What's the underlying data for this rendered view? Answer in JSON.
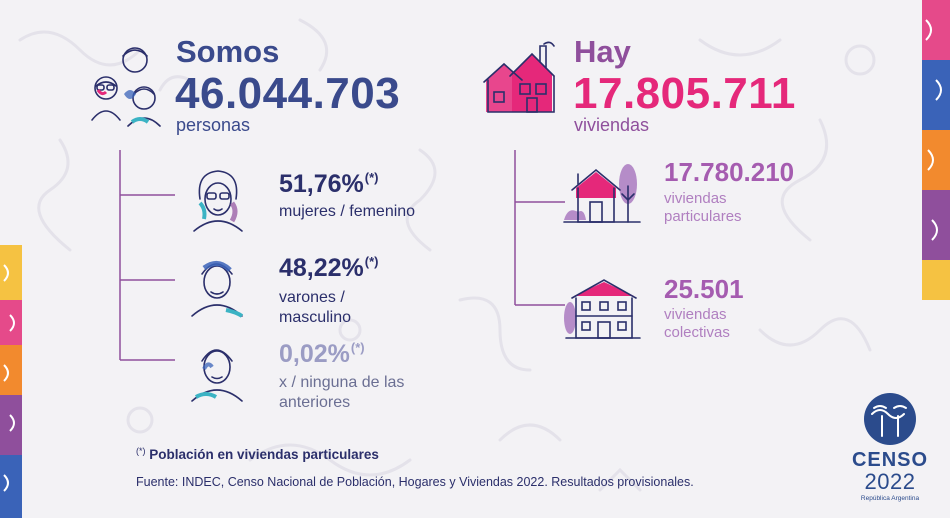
{
  "poblacion": {
    "intro": "Somos",
    "total": "46.044.703",
    "unidad": "personas",
    "stats": [
      {
        "pct": "51,76%",
        "mark": "(*)",
        "label": "mujeres / femenino"
      },
      {
        "pct": "48,22%",
        "mark": "(*)",
        "label": "varones / masculino"
      },
      {
        "pct": "0,02%",
        "mark": "(*)",
        "label": "x / ninguna de las anteriores"
      }
    ]
  },
  "viviendas": {
    "intro": "Hay",
    "total": "17.805.711",
    "unidad": "viviendas",
    "items": [
      {
        "value": "17.780.210",
        "label": "viviendas particulares"
      },
      {
        "value": "25.501",
        "label": "viviendas colectivas"
      }
    ]
  },
  "nota": {
    "mark": "(*)",
    "text": "Población en viviendas particulares"
  },
  "fuente": "Fuente: INDEC, Censo Nacional de Población, Hogares y Viviendas 2022. Resultados provisionales.",
  "logo": {
    "word": "CENSO",
    "year": "2022",
    "sub": "República Argentina"
  },
  "colors": {
    "navy": "#3a4a8c",
    "dark": "#2b2f6b",
    "pink": "#e5287a",
    "purple": "#8f4f9c",
    "lilac": "#b58cc8",
    "background": "#f3f2f5"
  },
  "icons": [
    "people-group-icon",
    "woman-face-icon",
    "man-face-icon",
    "person-face-icon",
    "houses-group-icon",
    "house-icon",
    "building-icon",
    "censo-logo-icon"
  ]
}
